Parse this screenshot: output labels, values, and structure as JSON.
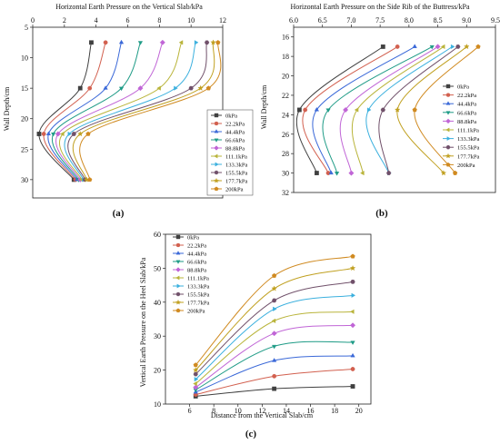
{
  "series_names": [
    "0kPa",
    "22.2kPa",
    "44.4kPa",
    "66.6kPa",
    "88.8kPa",
    "111.1kPa",
    "133.3kPa",
    "155.5kPa",
    "177.7kPa",
    "200kPa"
  ],
  "series_colors": [
    "#404040",
    "#d2604f",
    "#3a68d8",
    "#1e9b86",
    "#c065d6",
    "#b9b43a",
    "#3bb0de",
    "#70506a",
    "#c0a020",
    "#d08a20"
  ],
  "series_markers": [
    "square",
    "circle",
    "triangle-up",
    "triangle-down",
    "diamond",
    "triangle-left",
    "triangle-right",
    "hexagon",
    "star",
    "pentagon"
  ],
  "chart_data": [
    {
      "type": "line",
      "panel_label": "(a)",
      "title": "Horizontal Earth Pressure on the Vertical Slab/kPa",
      "xlabel": "Horizontal Earth Pressure on the Vertical Slab/kPa",
      "ylabel": "Wall Depth/cm",
      "xlim": [
        0,
        12
      ],
      "ylim": [
        5,
        33
      ],
      "x_ticks": [
        0,
        2,
        4,
        6,
        8,
        10,
        12
      ],
      "y_ticks": [
        5,
        10,
        15,
        20,
        25,
        30
      ],
      "y_inverted": true,
      "x_axis_position": "top",
      "legend_position": "lower-right",
      "depths": [
        7.5,
        15,
        22.5,
        30
      ],
      "series": [
        {
          "name": "0kPa",
          "x": [
            3.7,
            3.0,
            0.4,
            2.6
          ]
        },
        {
          "name": "22.2kPa",
          "x": [
            4.6,
            3.6,
            0.7,
            2.7
          ]
        },
        {
          "name": "44.4kPa",
          "x": [
            5.6,
            4.6,
            1.0,
            2.8
          ]
        },
        {
          "name": "66.6kPa",
          "x": [
            6.8,
            5.6,
            1.3,
            2.9
          ]
        },
        {
          "name": "88.8kPa",
          "x": [
            8.2,
            6.8,
            1.6,
            3.0
          ]
        },
        {
          "name": "111.1kPa",
          "x": [
            9.4,
            8.0,
            1.9,
            3.1
          ]
        },
        {
          "name": "133.3kPa",
          "x": [
            10.3,
            9.0,
            2.3,
            3.2
          ]
        },
        {
          "name": "155.5kPa",
          "x": [
            11.0,
            10.0,
            2.6,
            3.3
          ]
        },
        {
          "name": "177.7kPa",
          "x": [
            11.4,
            10.6,
            3.0,
            3.4
          ]
        },
        {
          "name": "200kPa",
          "x": [
            11.7,
            11.1,
            3.5,
            3.6
          ]
        }
      ]
    },
    {
      "type": "line",
      "panel_label": "(b)",
      "title": "Horizontal Earth Pressure on the Side Rib of the Buttress/kPa",
      "xlabel": "Horizontal Earth Pressure on the Side Rib of the Buttress/kPa",
      "ylabel": "Wall Depth/cm",
      "xlim": [
        6.0,
        9.5
      ],
      "ylim": [
        15,
        32
      ],
      "x_ticks": [
        6.0,
        6.5,
        7.0,
        7.5,
        8.0,
        8.5,
        9.0,
        9.5
      ],
      "y_ticks": [
        16,
        18,
        20,
        22,
        24,
        26,
        28,
        30,
        32
      ],
      "y_inverted": true,
      "x_axis_position": "top",
      "legend_position": "right",
      "depths": [
        17,
        23.5,
        30
      ],
      "series": [
        {
          "name": "0kPa",
          "x": [
            7.55,
            6.1,
            6.4
          ]
        },
        {
          "name": "22.2kPa",
          "x": [
            7.8,
            6.2,
            6.6
          ]
        },
        {
          "name": "44.4kPa",
          "x": [
            8.1,
            6.4,
            6.65
          ]
        },
        {
          "name": "66.6kPa",
          "x": [
            8.4,
            6.6,
            6.75
          ]
        },
        {
          "name": "88.8kPa",
          "x": [
            8.5,
            6.9,
            7.0
          ]
        },
        {
          "name": "111.1kPa",
          "x": [
            8.6,
            7.1,
            7.2
          ]
        },
        {
          "name": "133.3kPa",
          "x": [
            8.75,
            7.3,
            7.65
          ]
        },
        {
          "name": "155.5kPa",
          "x": [
            8.85,
            7.55,
            7.65
          ]
        },
        {
          "name": "177.7kPa",
          "x": [
            9.0,
            7.8,
            8.6
          ]
        },
        {
          "name": "200kPa",
          "x": [
            9.2,
            8.1,
            8.8
          ]
        }
      ]
    },
    {
      "type": "line",
      "panel_label": "(c)",
      "title": "",
      "xlabel": "Distance from the Vertical Slab/cm",
      "ylabel": "Vertical Earth Pressure on the Heel Slab/kPa",
      "xlim": [
        4,
        21
      ],
      "ylim": [
        10,
        60
      ],
      "x_ticks": [
        6,
        8,
        10,
        12,
        14,
        16,
        18,
        20
      ],
      "y_ticks": [
        10,
        20,
        30,
        40,
        50,
        60
      ],
      "y_inverted": false,
      "x_axis_position": "bottom",
      "legend_position": "top-left",
      "x": [
        6.5,
        13,
        19.5
      ],
      "series": [
        {
          "name": "0kPa",
          "values": [
            12.3,
            14.5,
            15.2
          ]
        },
        {
          "name": "22.2kPa",
          "values": [
            12.8,
            18.2,
            20.3
          ]
        },
        {
          "name": "44.4kPa",
          "values": [
            13.5,
            22.8,
            24.2
          ]
        },
        {
          "name": "66.6kPa",
          "values": [
            14.2,
            27.0,
            28.2
          ]
        },
        {
          "name": "88.8kPa",
          "values": [
            14.9,
            30.8,
            33.2
          ]
        },
        {
          "name": "111.1kPa",
          "values": [
            16.0,
            34.5,
            37.2
          ]
        },
        {
          "name": "133.3kPa",
          "values": [
            17.3,
            38.0,
            42.0
          ]
        },
        {
          "name": "155.5kPa",
          "values": [
            18.8,
            40.5,
            46.0
          ]
        },
        {
          "name": "177.7kPa",
          "values": [
            20.0,
            44.0,
            50.0
          ]
        },
        {
          "name": "200kPa",
          "values": [
            21.5,
            47.8,
            53.5
          ]
        }
      ]
    }
  ]
}
